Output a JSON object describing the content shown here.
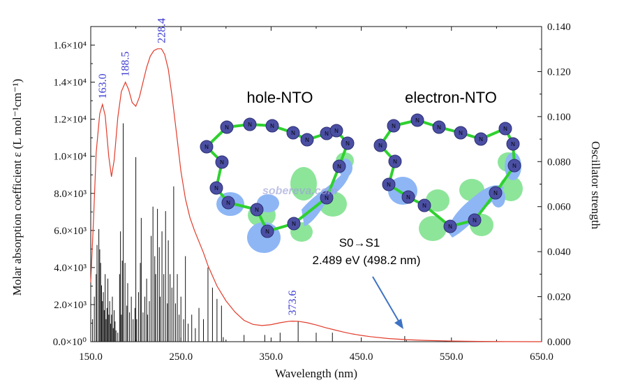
{
  "chart_data": {
    "type": "line",
    "xlabel": "Wavelength (nm)",
    "ylabel_left": "Molar absorption coefficient  ε (L mol⁻¹cm⁻¹)",
    "ylabel_right": "Oscillator strength",
    "xlim": [
      150,
      650
    ],
    "ylim_left": [
      0,
      17000
    ],
    "ylim_right": [
      0,
      0.14
    ],
    "x_ticks": [
      "150.0",
      "250.0",
      "350.0",
      "450.0",
      "550.0",
      "650.0"
    ],
    "y_left_ticks": [
      "0.0×10⁰",
      "2.0×10³",
      "4.0×10³",
      "6.0×10³",
      "8.0×10³",
      "1.0×10⁴",
      "1.2×10⁴",
      "1.4×10⁴",
      "1.6×10⁴"
    ],
    "y_right_ticks": [
      "0.000",
      "0.020",
      "0.040",
      "0.060",
      "0.080",
      "0.100",
      "0.120",
      "0.140"
    ],
    "grid": false,
    "spectrum_color": "#e23b2a",
    "stick_color": "#111111",
    "spectrum": {
      "x": [
        150,
        153,
        156,
        160,
        163,
        166,
        170,
        173,
        176,
        180,
        184,
        188.5,
        192,
        196,
        200,
        204,
        208,
        212,
        216,
        220,
        224,
        228.4,
        232,
        236,
        240,
        245,
        250,
        255,
        260,
        265,
        270,
        275,
        280,
        290,
        300,
        310,
        320,
        330,
        340,
        350,
        360,
        370,
        373.6,
        380,
        390,
        400,
        410,
        420,
        430,
        440,
        450,
        460,
        480,
        500,
        520,
        550,
        580,
        610,
        650
      ],
      "y": [
        3200,
        6500,
        10200,
        12300,
        12800,
        12200,
        10000,
        8900,
        9800,
        12100,
        13500,
        14000,
        13600,
        12900,
        12700,
        13200,
        14000,
        14800,
        15400,
        15700,
        15800,
        15800,
        15500,
        14700,
        13300,
        11300,
        9200,
        7700,
        6700,
        6000,
        5400,
        4800,
        4100,
        3000,
        2200,
        1600,
        1150,
        930,
        870,
        920,
        1020,
        1100,
        1110,
        1100,
        1020,
        900,
        760,
        640,
        520,
        420,
        340,
        270,
        170,
        110,
        70,
        35,
        15,
        5,
        0
      ]
    },
    "sticks": {
      "x": [
        152,
        154,
        156,
        157,
        159,
        160,
        161,
        162,
        163,
        164,
        165,
        166,
        167,
        168,
        169,
        170,
        171,
        172,
        173,
        174,
        175,
        176,
        177,
        178,
        180,
        182,
        183,
        184,
        185,
        186,
        188,
        190,
        191,
        193,
        195,
        197,
        199,
        200,
        201,
        203,
        205,
        206,
        208,
        210,
        212,
        213,
        215,
        217,
        219,
        221,
        222,
        224,
        226,
        227,
        229,
        231,
        233,
        235,
        236,
        238,
        240,
        242,
        244,
        246,
        248,
        250,
        253,
        255,
        258,
        262,
        266,
        270,
        275,
        280,
        285,
        290,
        295,
        297,
        320,
        343,
        360,
        380,
        400,
        418,
        498.2
      ],
      "y": [
        0.01,
        0.02,
        0.03,
        0.043,
        0.05,
        0.041,
        0.035,
        0.025,
        0.018,
        0.022,
        0.014,
        0.03,
        0.01,
        0.015,
        0.028,
        0.012,
        0.018,
        0.008,
        0.012,
        0.02,
        0.006,
        0.014,
        0.009,
        0.005,
        0.004,
        0.03,
        0.049,
        0.012,
        0.036,
        0.097,
        0.035,
        0.016,
        0.026,
        0.013,
        0.02,
        0.01,
        0.015,
        0.082,
        0.01,
        0.022,
        0.035,
        0.055,
        0.013,
        0.02,
        0.028,
        0.012,
        0.018,
        0.047,
        0.06,
        0.038,
        0.03,
        0.059,
        0.042,
        0.02,
        0.049,
        0.03,
        0.058,
        0.017,
        0.045,
        0.03,
        0.024,
        0.069,
        0.017,
        0.03,
        0.012,
        0.02,
        0.01,
        0.038,
        0.008,
        0.012,
        0.006,
        0.015,
        0.01,
        0.033,
        0.024,
        0.019,
        0.016,
        0.002,
        0.003,
        0.003,
        0.004,
        0.009,
        0.004,
        0.004,
        0.0025
      ]
    },
    "peak_labels": [
      {
        "text": "163.0",
        "x": 163.0
      },
      {
        "text": "188.5",
        "x": 188.5
      },
      {
        "text": "228.4",
        "x": 228.4
      },
      {
        "text": "373.6",
        "x": 373.6
      }
    ]
  },
  "inset": {
    "hole_title": "hole-NTO",
    "electron_title": "electron-NTO",
    "atom_symbol": "N",
    "transition_label": "S0→S1",
    "transition_energy": "2.489 eV (498.2 nm)",
    "watermark": "sobereva.com",
    "colors": {
      "atom": "#4b4fa3",
      "bond": "#2fd12f",
      "lobe_blue": "#8eb6f5",
      "lobe_green": "#8de59a",
      "arrow": "#3d72c4"
    }
  }
}
